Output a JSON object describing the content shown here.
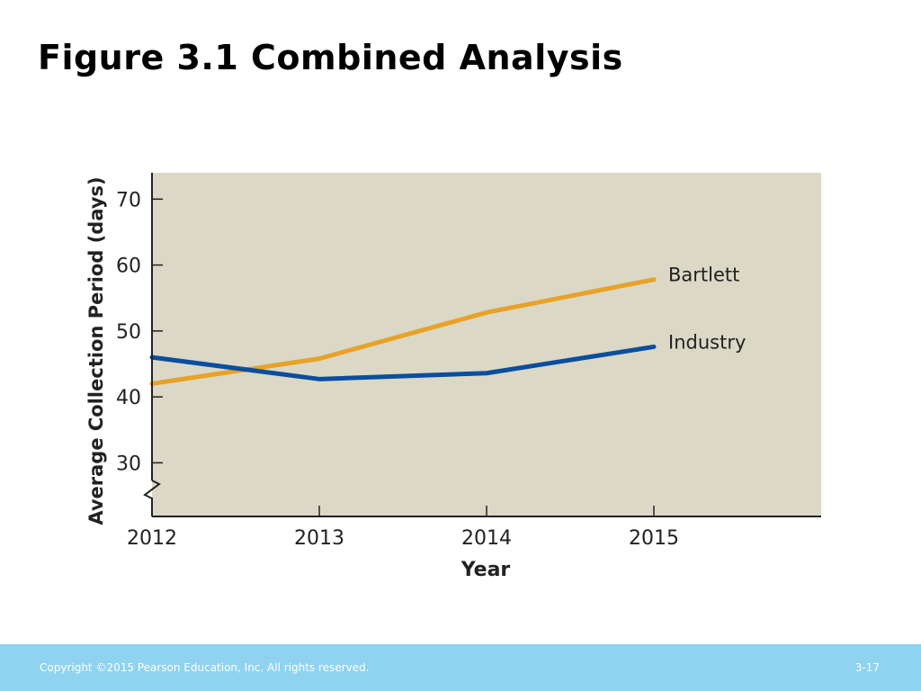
{
  "slide": {
    "title": "Figure 3.1 Combined Analysis"
  },
  "footer": {
    "copyright": "Copyright ©2015 Pearson Education, Inc. All rights reserved.",
    "page": "3-17",
    "background_color": "#8fd3f0"
  },
  "chart_data": {
    "type": "line",
    "title": "",
    "xlabel": "Year",
    "ylabel": "Average Collection Period (days)",
    "x": [
      "2012",
      "2013",
      "2014",
      "2015"
    ],
    "y_ticks": [
      30,
      40,
      50,
      60,
      70
    ],
    "ylim": [
      25,
      74
    ],
    "axis_break": true,
    "grid": false,
    "plot_background": "#dbd8c6",
    "series": [
      {
        "name": "Bartlett",
        "values": [
          42,
          45.8,
          52.8,
          57.8
        ],
        "color": "#e8a228"
      },
      {
        "name": "Industry",
        "values": [
          46,
          42.7,
          43.6,
          47.6
        ],
        "color": "#0b4e9e"
      }
    ]
  }
}
